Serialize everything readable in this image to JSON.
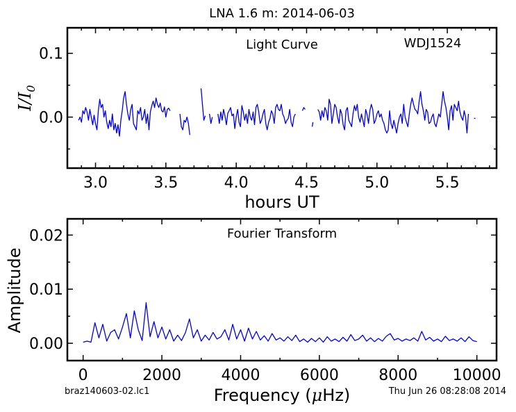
{
  "figure": {
    "title": "LNA 1.6 m:  2014-06-03",
    "footer_left": "braz140603-02.lc1",
    "footer_right": "Thu Jun 26 08:28:08 2014"
  },
  "colors": {
    "series": "#0000ee",
    "axes": "#000000"
  },
  "chart_data": [
    {
      "type": "line",
      "name": "light-curve",
      "annotation": "Light Curve",
      "object_label": "WDJ1524",
      "xlabel": "hours UT",
      "ylabel": "I/I0",
      "xlim": [
        2.8,
        5.85
      ],
      "ylim": [
        -0.08,
        0.14
      ],
      "xticks": [
        3.0,
        3.5,
        4.0,
        4.5,
        5.0,
        5.5
      ],
      "xtick_labels": [
        "3.0",
        "3.5",
        "4.0",
        "4.5",
        "5.0",
        "5.5"
      ],
      "yticks": [
        0.1,
        0.0
      ],
      "ytick_labels": [
        "0.1",
        "0.0"
      ],
      "grid": false,
      "segments": [
        {
          "x": [
            2.88,
            2.89,
            2.9,
            2.91,
            2.92,
            2.93,
            2.94,
            2.95,
            2.96,
            2.97,
            2.98,
            2.99,
            3.0,
            3.01,
            3.02,
            3.03,
            3.04,
            3.05,
            3.06,
            3.07,
            3.08,
            3.09,
            3.1,
            3.11,
            3.12,
            3.13,
            3.14,
            3.15,
            3.16,
            3.17,
            3.18,
            3.19,
            3.2,
            3.21,
            3.22,
            3.23,
            3.24,
            3.25,
            3.26,
            3.27,
            3.28,
            3.29,
            3.3,
            3.31,
            3.32,
            3.33,
            3.34,
            3.35,
            3.36,
            3.37,
            3.38,
            3.39,
            3.4,
            3.41,
            3.42,
            3.43,
            3.44,
            3.45,
            3.46,
            3.47,
            3.48,
            3.49,
            3.5,
            3.51,
            3.52,
            3.53
          ],
          "y": [
            -0.005,
            0.0,
            -0.008,
            0.01,
            0.005,
            0.015,
            0.008,
            -0.005,
            0.012,
            0.0,
            -0.012,
            0.003,
            -0.01,
            -0.02,
            0.01,
            0.028,
            0.015,
            0.02,
            0.0,
            0.01,
            -0.008,
            -0.018,
            -0.005,
            -0.015,
            0.005,
            -0.02,
            -0.01,
            -0.025,
            -0.012,
            -0.03,
            -0.005,
            0.01,
            0.03,
            0.04,
            0.02,
            0.005,
            -0.005,
            0.012,
            0.02,
            -0.01,
            -0.015,
            -0.02,
            0.01,
            0.005,
            0.015,
            -0.005,
            0.0,
            0.012,
            -0.01,
            0.005,
            -0.02,
            0.008,
            0.018,
            0.025,
            0.015,
            0.03,
            0.02,
            0.015,
            0.022,
            0.01,
            0.008,
            0.016,
            0.0,
            0.012,
            0.014,
            0.01
          ]
        },
        {
          "x": [
            3.6,
            3.61,
            3.62,
            3.63,
            3.64,
            3.65,
            3.66,
            3.67
          ],
          "y": [
            0.005,
            -0.015,
            -0.02,
            -0.005,
            -0.008,
            0.0,
            -0.01,
            -0.028
          ]
        },
        {
          "x": [
            3.75,
            3.76,
            3.77,
            3.78
          ],
          "y": [
            0.045,
            0.02,
            -0.005,
            0.002
          ]
        },
        {
          "x": [
            3.81,
            3.82,
            3.83
          ],
          "y": [
            0.005,
            -0.01,
            0.0
          ]
        },
        {
          "x": [
            3.87,
            3.88,
            3.89,
            3.9,
            3.91,
            3.92,
            3.93,
            3.94,
            3.95,
            3.96,
            3.97,
            3.98,
            3.99,
            4.0,
            4.01,
            4.02,
            4.03,
            4.04,
            4.05,
            4.06,
            4.07,
            4.08,
            4.09,
            4.1,
            4.11,
            4.12,
            4.13,
            4.14,
            4.15,
            4.16,
            4.17,
            4.18,
            4.19,
            4.2,
            4.21,
            4.22,
            4.23,
            4.24,
            4.25,
            4.26,
            4.27,
            4.28,
            4.29,
            4.3,
            4.31,
            4.32,
            4.33,
            4.34,
            4.35,
            4.36,
            4.37,
            4.38,
            4.39,
            4.4,
            4.41,
            4.42
          ],
          "y": [
            0.005,
            -0.01,
            0.008,
            -0.005,
            0.012,
            0.002,
            -0.012,
            0.006,
            0.01,
            0.015,
            0.002,
            0.005,
            -0.018,
            0.0,
            0.012,
            -0.008,
            -0.015,
            0.018,
            0.008,
            -0.005,
            0.005,
            -0.01,
            0.012,
            0.0,
            -0.005,
            0.008,
            -0.012,
            0.015,
            0.02,
            0.008,
            -0.01,
            -0.005,
            0.005,
            0.012,
            -0.01,
            -0.02,
            -0.008,
            -0.002,
            0.01,
            0.005,
            -0.01,
            0.015,
            0.02,
            0.012,
            0.01,
            0.02,
            0.005,
            0.0,
            -0.01,
            -0.005,
            -0.002,
            0.012,
            -0.008,
            -0.015,
            0.0,
            0.005
          ]
        },
        {
          "x": [
            4.47,
            4.48,
            4.49
          ],
          "y": [
            0.01,
            0.015,
            0.012
          ]
        },
        {
          "x": [
            4.54,
            4.545
          ],
          "y": [
            -0.015,
            -0.008
          ]
        },
        {
          "x": [
            4.58,
            4.59,
            4.6,
            4.61,
            4.62,
            4.63,
            4.64,
            4.65,
            4.66,
            4.67,
            4.68,
            4.69,
            4.7,
            4.71,
            4.72,
            4.73,
            4.74,
            4.75,
            4.76,
            4.77,
            4.78,
            4.79,
            4.8,
            4.81,
            4.82,
            4.83,
            4.84,
            4.85,
            4.86,
            4.87,
            4.88,
            4.89,
            4.9,
            4.91,
            4.92,
            4.93,
            4.94,
            4.95,
            4.96,
            4.97,
            4.98,
            4.99,
            5.0,
            5.01,
            5.02,
            5.03,
            5.04,
            5.05,
            5.06,
            5.07,
            5.08,
            5.09,
            5.1,
            5.11,
            5.12,
            5.13,
            5.14,
            5.15,
            5.16,
            5.17,
            5.18,
            5.19,
            5.2,
            5.21,
            5.22,
            5.23,
            5.24,
            5.25,
            5.26,
            5.27,
            5.28,
            5.29,
            5.3,
            5.31,
            5.32,
            5.33,
            5.34,
            5.35,
            5.36,
            5.37,
            5.38,
            5.39,
            5.4,
            5.41,
            5.42,
            5.43,
            5.44,
            5.45,
            5.46,
            5.47,
            5.48,
            5.49,
            5.5,
            5.51,
            5.52,
            5.53,
            5.54,
            5.55,
            5.56,
            5.57,
            5.58,
            5.59,
            5.6,
            5.61,
            5.62,
            5.63,
            5.64,
            5.65
          ],
          "y": [
            0.012,
            0.008,
            -0.005,
            0.01,
            0.0,
            0.015,
            0.01,
            -0.005,
            0.028,
            0.02,
            -0.01,
            0.005,
            0.02,
            0.015,
            0.0,
            -0.01,
            0.012,
            0.005,
            -0.012,
            -0.02,
            0.01,
            0.015,
            -0.005,
            -0.01,
            -0.015,
            0.005,
            0.018,
            0.01,
            0.02,
            0.0,
            -0.008,
            0.005,
            -0.005,
            -0.015,
            0.012,
            0.004,
            -0.01,
            0.01,
            0.02,
            0.012,
            -0.01,
            -0.005,
            0.005,
            0.01,
            0.0,
            0.005,
            -0.005,
            -0.01,
            -0.02,
            -0.025,
            -0.02,
            0.01,
            -0.01,
            -0.018,
            -0.005,
            -0.015,
            -0.025,
            -0.01,
            0.0,
            0.005,
            -0.01,
            0.02,
            0.0,
            -0.008,
            -0.015,
            0.005,
            0.02,
            0.03,
            0.02,
            0.012,
            0.01,
            0.005,
            0.025,
            0.04,
            0.02,
            0.01,
            -0.005,
            0.012,
            0.008,
            -0.01,
            -0.008,
            0.0,
            0.005,
            -0.01,
            -0.015,
            -0.005,
            0.005,
            0.0,
            0.02,
            0.04,
            0.025,
            0.015,
            0.0,
            -0.02,
            0.01,
            0.018,
            -0.005,
            0.02,
            0.015,
            0.01,
            0.025,
            0.008,
            0.0,
            -0.005,
            0.01,
            0.0,
            -0.025,
            0.005
          ]
        },
        {
          "x": [
            5.69,
            5.7
          ],
          "y": [
            -0.002,
            -0.002
          ]
        }
      ]
    },
    {
      "type": "line",
      "name": "fourier-transform",
      "annotation": "Fourier Transform",
      "xlabel": "Frequency (μHz)",
      "ylabel": "Amplitude",
      "xlim": [
        -400,
        10500
      ],
      "ylim": [
        -0.0032,
        0.023
      ],
      "xticks": [
        0,
        2000,
        4000,
        6000,
        8000,
        10000
      ],
      "xtick_labels": [
        "0",
        "2000",
        "4000",
        "6000",
        "8000",
        "10000"
      ],
      "yticks": [
        0.02,
        0.01,
        0.0
      ],
      "ytick_labels": [
        "0.02",
        "0.01",
        "0.00"
      ],
      "grid": false,
      "x": [
        0,
        100,
        200,
        300,
        400,
        500,
        600,
        700,
        800,
        900,
        1000,
        1100,
        1200,
        1300,
        1400,
        1500,
        1600,
        1700,
        1800,
        1900,
        2000,
        2100,
        2200,
        2300,
        2400,
        2500,
        2600,
        2700,
        2800,
        2900,
        3000,
        3100,
        3200,
        3300,
        3400,
        3500,
        3600,
        3700,
        3800,
        3900,
        4000,
        4100,
        4200,
        4300,
        4400,
        4500,
        4600,
        4700,
        4800,
        4900,
        5000,
        5100,
        5200,
        5300,
        5400,
        5500,
        5600,
        5700,
        5800,
        5900,
        6000,
        6100,
        6200,
        6300,
        6400,
        6500,
        6600,
        6700,
        6800,
        6900,
        7000,
        7100,
        7200,
        7300,
        7400,
        7500,
        7600,
        7700,
        7800,
        7900,
        8000,
        8100,
        8200,
        8300,
        8400,
        8500,
        8600,
        8700,
        8800,
        8900,
        9000,
        9100,
        9200,
        9300,
        9400,
        9500,
        9600,
        9700,
        9800,
        9900,
        10000
      ],
      "y": [
        0.0002,
        0.0004,
        0.0002,
        0.0038,
        0.001,
        0.0035,
        0.0004,
        0.002,
        0.0025,
        0.0008,
        0.003,
        0.0055,
        0.001,
        0.006,
        0.0025,
        0.0005,
        0.0075,
        0.0012,
        0.004,
        0.001,
        0.003,
        0.0008,
        0.0025,
        0.0004,
        0.0015,
        0.0005,
        0.002,
        0.0045,
        0.001,
        0.0025,
        0.0004,
        0.0015,
        0.0006,
        0.002,
        0.0008,
        0.0012,
        0.0025,
        0.0006,
        0.0035,
        0.0008,
        0.0025,
        0.0004,
        0.0028,
        0.0008,
        0.0022,
        0.0006,
        0.0014,
        0.0004,
        0.0018,
        0.0006,
        0.001,
        0.0004,
        0.0012,
        0.0005,
        0.0015,
        0.0003,
        0.0008,
        0.0002,
        0.0009,
        0.0003,
        0.001,
        0.0002,
        0.0012,
        0.0004,
        0.0008,
        0.0003,
        0.0011,
        0.0004,
        0.0016,
        0.0005,
        0.0008,
        0.0015,
        0.0004,
        0.001,
        0.0003,
        0.0009,
        0.0004,
        0.0013,
        0.0018,
        0.0006,
        0.0009,
        0.0004,
        0.0008,
        0.0005,
        0.001,
        0.0004,
        0.0022,
        0.0006,
        0.0011,
        0.0004,
        0.0008,
        0.0003,
        0.0013,
        0.0005,
        0.0008,
        0.0004,
        0.001,
        0.0003,
        0.0012,
        0.0005,
        0.0003
      ]
    }
  ]
}
